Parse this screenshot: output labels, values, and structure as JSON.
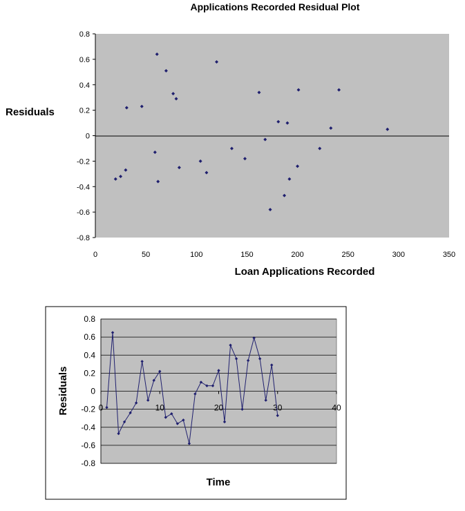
{
  "chart_data": [
    {
      "type": "scatter",
      "title": "Applications Recorded  Residual Plot",
      "xlabel": "Loan Applications Recorded",
      "ylabel": "Residuals",
      "xlim": [
        0,
        350
      ],
      "ylim": [
        -0.8,
        0.8
      ],
      "xticks": [
        0,
        50,
        100,
        150,
        200,
        250,
        300,
        350
      ],
      "yticks": [
        0.8,
        0.6,
        0.4,
        0.2,
        0,
        -0.2,
        -0.4,
        -0.6,
        -0.8
      ],
      "grid": false,
      "background": "#c0c0c0",
      "marker_color": "#1f1f6e",
      "points": [
        [
          20,
          -0.34
        ],
        [
          25,
          -0.32
        ],
        [
          30,
          -0.27
        ],
        [
          31,
          0.22
        ],
        [
          46,
          0.23
        ],
        [
          59,
          -0.13
        ],
        [
          61,
          0.64
        ],
        [
          62,
          -0.36
        ],
        [
          70,
          0.51
        ],
        [
          77,
          0.33
        ],
        [
          80,
          0.29
        ],
        [
          83,
          -0.25
        ],
        [
          104,
          -0.2
        ],
        [
          110,
          -0.29
        ],
        [
          120,
          0.58
        ],
        [
          135,
          -0.1
        ],
        [
          148,
          -0.18
        ],
        [
          162,
          0.34
        ],
        [
          168,
          -0.03
        ],
        [
          173,
          -0.58
        ],
        [
          181,
          0.11
        ],
        [
          187,
          -0.47
        ],
        [
          190,
          0.1
        ],
        [
          192,
          -0.34
        ],
        [
          200,
          -0.24
        ],
        [
          201,
          0.36
        ],
        [
          222,
          -0.1
        ],
        [
          233,
          0.06
        ],
        [
          241,
          0.36
        ],
        [
          289,
          0.05
        ]
      ],
      "tick_labels_x": [
        "0",
        "50",
        "100",
        "150",
        "200",
        "250",
        "300",
        "350"
      ],
      "tick_labels_y": [
        "0.8",
        "0.6",
        "0.4",
        "0.2",
        "0",
        "-0.2",
        "-0.4",
        "-0.6",
        "-0.8"
      ]
    },
    {
      "type": "line",
      "title": "",
      "xlabel": "Time",
      "ylabel": "Residuals",
      "xlim": [
        0,
        40
      ],
      "ylim": [
        -0.8,
        0.8
      ],
      "xticks": [
        0,
        10,
        20,
        30,
        40
      ],
      "yticks": [
        0.8,
        0.6,
        0.4,
        0.2,
        0,
        -0.2,
        -0.4,
        -0.6,
        -0.8
      ],
      "grid": true,
      "background": "#c0c0c0",
      "line_color": "#1f1f6e",
      "x": [
        1,
        2,
        3,
        4,
        5,
        6,
        7,
        8,
        9,
        10,
        11,
        12,
        13,
        14,
        15,
        16,
        17,
        18,
        19,
        20,
        21,
        22,
        23,
        24,
        25,
        26,
        27,
        28,
        29,
        30
      ],
      "y": [
        -0.18,
        0.65,
        -0.47,
        -0.34,
        -0.24,
        -0.13,
        0.33,
        -0.1,
        0.12,
        0.22,
        -0.29,
        -0.25,
        -0.36,
        -0.32,
        -0.58,
        -0.03,
        0.1,
        0.06,
        0.06,
        0.23,
        -0.34,
        0.51,
        0.36,
        -0.2,
        0.34,
        0.59,
        0.36,
        -0.1,
        0.29,
        -0.27
      ],
      "tick_labels_x": [
        "0",
        "10",
        "20",
        "30",
        "40"
      ],
      "tick_labels_y": [
        "0.8",
        "0.6",
        "0.4",
        "0.2",
        "0",
        "-0.2",
        "-0.4",
        "-0.6",
        "-0.8"
      ]
    }
  ]
}
